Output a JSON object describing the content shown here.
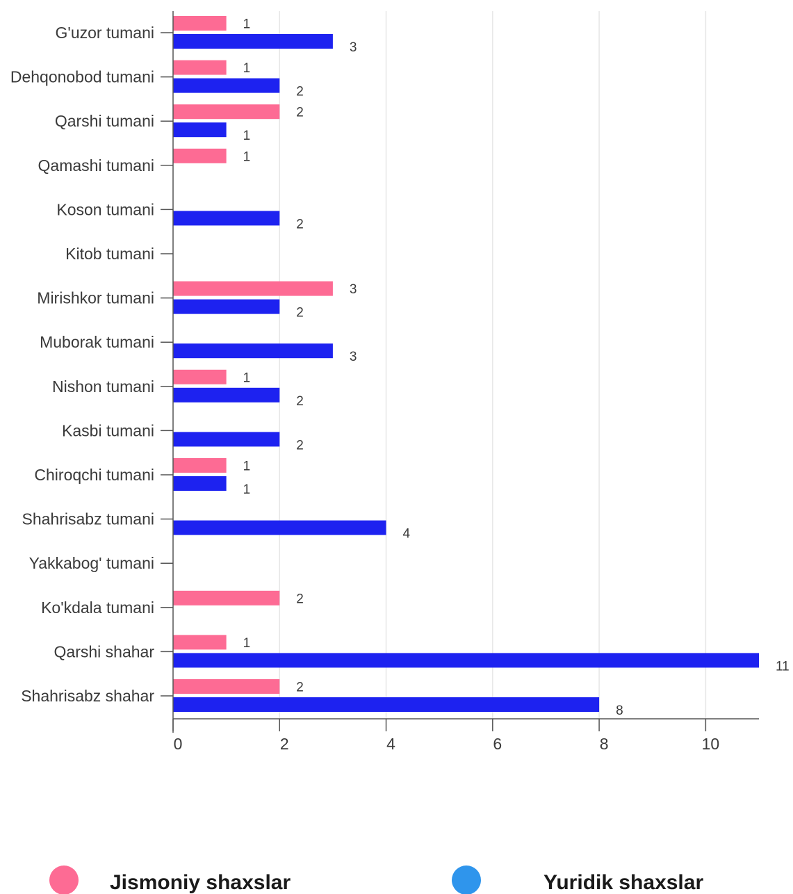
{
  "chart_data": {
    "type": "bar",
    "orientation": "horizontal",
    "categories": [
      "G'uzor tumani",
      "Dehqonobod tumani",
      "Qarshi tumani",
      "Qamashi tumani",
      "Koson tumani",
      "Kitob tumani",
      "Mirishkor tumani",
      "Muborak tumani",
      "Nishon tumani",
      "Kasbi tumani",
      "Chiroqchi tumani",
      "Shahrisabz tumani",
      "Yakkabog' tumani",
      "Ko'kdala tumani",
      "Qarshi shahar",
      "Shahrisabz shahar"
    ],
    "series": [
      {
        "name": "Jismoniy shaxslar",
        "color": "#fd6b94",
        "values": [
          1,
          1,
          2,
          1,
          null,
          null,
          3,
          null,
          1,
          null,
          1,
          null,
          null,
          2,
          1,
          2
        ]
      },
      {
        "name": "Yuridik shaxslar",
        "color": "#1d22f0",
        "legend_color": "#2f95ec",
        "values": [
          3,
          2,
          1,
          null,
          2,
          null,
          2,
          3,
          2,
          2,
          1,
          4,
          null,
          null,
          11,
          8
        ]
      }
    ],
    "xlim": [
      0,
      11
    ],
    "xticks": [
      0,
      2,
      4,
      6,
      8,
      10
    ],
    "grid": true,
    "legend_position": "bottom",
    "title": "",
    "xlabel": "",
    "ylabel": ""
  }
}
